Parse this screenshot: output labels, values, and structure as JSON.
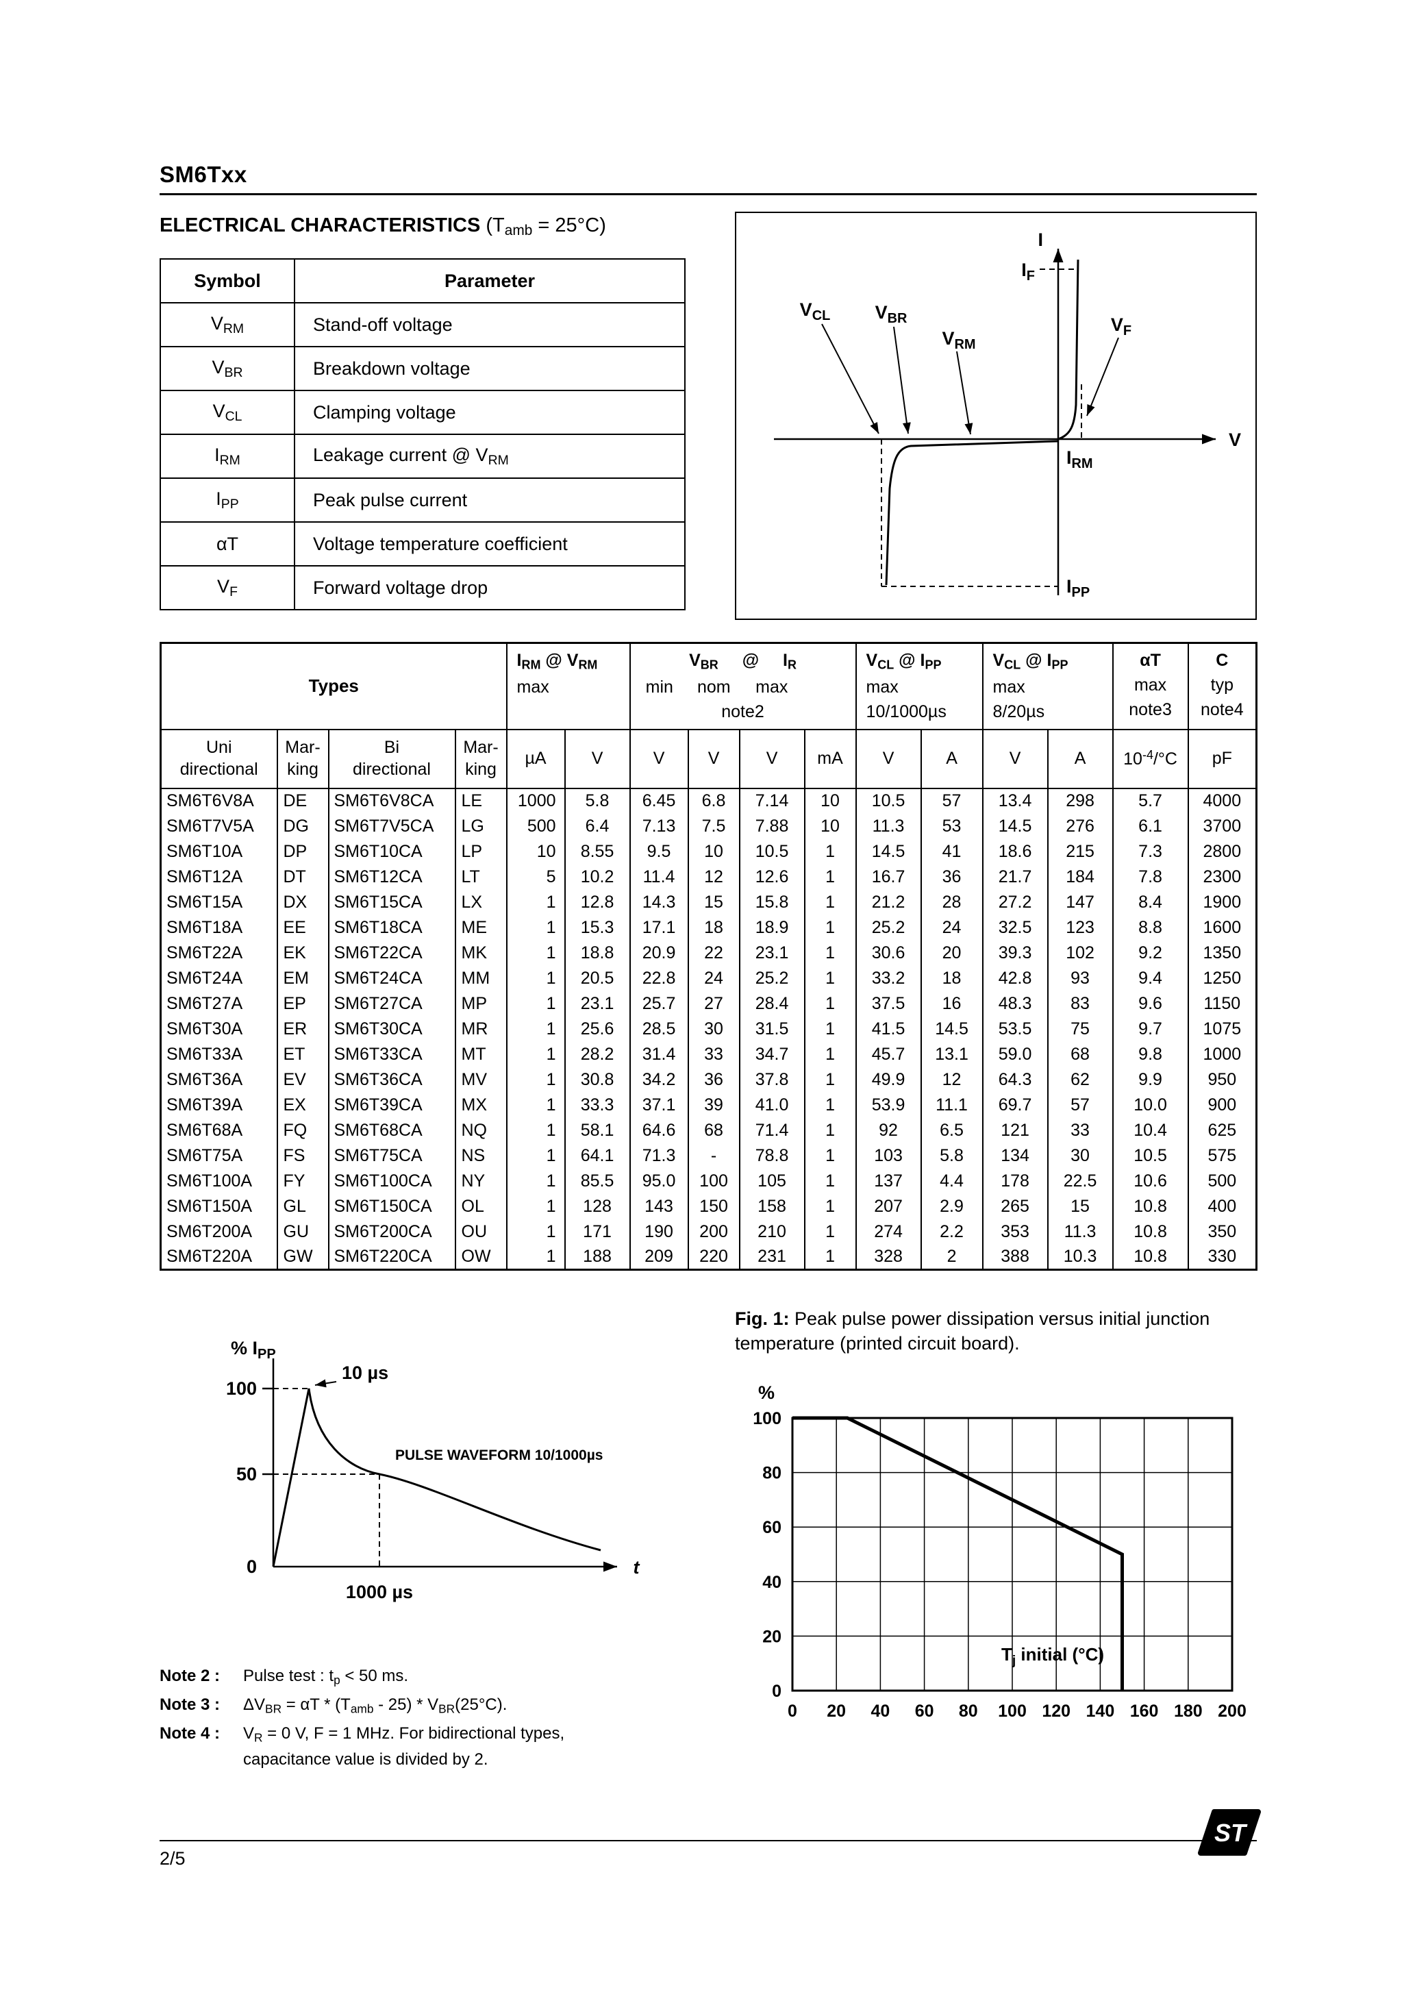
{
  "page": {
    "model": "SM6Txx",
    "section_title_main": "ELECTRICAL CHARACTERISTICS",
    "section_title_cond": " (T~amb~ = 25°C)"
  },
  "symbol_table": {
    "col1": "Symbol",
    "col2": "Parameter",
    "rows": [
      {
        "symbol": "V~RM~",
        "parameter": "Stand-off voltage"
      },
      {
        "symbol": "V~BR~",
        "parameter": "Breakdown voltage"
      },
      {
        "symbol": "V~CL~",
        "parameter": "Clamping voltage"
      },
      {
        "symbol": "I~RM~",
        "parameter": "Leakage current @ V~RM~"
      },
      {
        "symbol": "I~PP~",
        "parameter": "Peak pulse current"
      },
      {
        "symbol": "αT",
        "parameter": "Voltage temperature coefficient"
      },
      {
        "symbol": "V~F~",
        "parameter": "Forward voltage drop"
      }
    ]
  },
  "iv_diagram": {
    "i_axis": "I",
    "v_axis": "V",
    "if_label": "I~F~",
    "vcl_label": "V~CL~",
    "vbr_label": "V~BR~",
    "vrm_label": "V~RM~",
    "vf_label": "V~F~",
    "irm_label": "I~RM~",
    "ipp_label": "I~PP~"
  },
  "main_table": {
    "groups": {
      "types": "Types",
      "irm": {
        "l1": "I~RM~ @ V~RM~",
        "l2": "max",
        "l3": ""
      },
      "vbr": {
        "l1": "V~BR~ @ I~R~",
        "min": "min",
        "nom": "nom",
        "max": "max",
        "note": "note2"
      },
      "vcl10": {
        "l1": "V~CL~ @ I~PP~",
        "l2": "max",
        "l3": "10/1000µs"
      },
      "vcl8": {
        "l1": "V~CL~ @ I~PP~",
        "l2": "max",
        "l3": "8/20µs"
      },
      "alpha": {
        "l1": "αT",
        "l2": "max",
        "l3": "note3"
      },
      "cap": {
        "l1": "C",
        "l2": "typ",
        "l3": "note4"
      }
    },
    "col_headers": [
      "Uni\ndirectional",
      "Mar-\nking",
      "Bi\ndirectional",
      "Mar-\nking",
      "µA",
      "V",
      "V",
      "V",
      "V",
      "mA",
      "V",
      "A",
      "V",
      "A",
      "10^-4^/°C",
      "pF"
    ],
    "rows": [
      [
        "SM6T6V8A",
        "DE",
        "SM6T6V8CA",
        "LE",
        "1000",
        "5.8",
        "6.45",
        "6.8",
        "7.14",
        "10",
        "10.5",
        "57",
        "13.4",
        "298",
        "5.7",
        "4000"
      ],
      [
        "SM6T7V5A",
        "DG",
        "SM6T7V5CA",
        "LG",
        "500",
        "6.4",
        "7.13",
        "7.5",
        "7.88",
        "10",
        "11.3",
        "53",
        "14.5",
        "276",
        "6.1",
        "3700"
      ],
      [
        "SM6T10A",
        "DP",
        "SM6T10CA",
        "LP",
        "10",
        "8.55",
        "9.5",
        "10",
        "10.5",
        "1",
        "14.5",
        "41",
        "18.6",
        "215",
        "7.3",
        "2800"
      ],
      [
        "SM6T12A",
        "DT",
        "SM6T12CA",
        "LT",
        "5",
        "10.2",
        "11.4",
        "12",
        "12.6",
        "1",
        "16.7",
        "36",
        "21.7",
        "184",
        "7.8",
        "2300"
      ],
      [
        "SM6T15A",
        "DX",
        "SM6T15CA",
        "LX",
        "1",
        "12.8",
        "14.3",
        "15",
        "15.8",
        "1",
        "21.2",
        "28",
        "27.2",
        "147",
        "8.4",
        "1900"
      ],
      [
        "SM6T18A",
        "EE",
        "SM6T18CA",
        "ME",
        "1",
        "15.3",
        "17.1",
        "18",
        "18.9",
        "1",
        "25.2",
        "24",
        "32.5",
        "123",
        "8.8",
        "1600"
      ],
      [
        "SM6T22A",
        "EK",
        "SM6T22CA",
        "MK",
        "1",
        "18.8",
        "20.9",
        "22",
        "23.1",
        "1",
        "30.6",
        "20",
        "39.3",
        "102",
        "9.2",
        "1350"
      ],
      [
        "SM6T24A",
        "EM",
        "SM6T24CA",
        "MM",
        "1",
        "20.5",
        "22.8",
        "24",
        "25.2",
        "1",
        "33.2",
        "18",
        "42.8",
        "93",
        "9.4",
        "1250"
      ],
      [
        "SM6T27A",
        "EP",
        "SM6T27CA",
        "MP",
        "1",
        "23.1",
        "25.7",
        "27",
        "28.4",
        "1",
        "37.5",
        "16",
        "48.3",
        "83",
        "9.6",
        "1150"
      ],
      [
        "SM6T30A",
        "ER",
        "SM6T30CA",
        "MR",
        "1",
        "25.6",
        "28.5",
        "30",
        "31.5",
        "1",
        "41.5",
        "14.5",
        "53.5",
        "75",
        "9.7",
        "1075"
      ],
      [
        "SM6T33A",
        "ET",
        "SM6T33CA",
        "MT",
        "1",
        "28.2",
        "31.4",
        "33",
        "34.7",
        "1",
        "45.7",
        "13.1",
        "59.0",
        "68",
        "9.8",
        "1000"
      ],
      [
        "SM6T36A",
        "EV",
        "SM6T36CA",
        "MV",
        "1",
        "30.8",
        "34.2",
        "36",
        "37.8",
        "1",
        "49.9",
        "12",
        "64.3",
        "62",
        "9.9",
        "950"
      ],
      [
        "SM6T39A",
        "EX",
        "SM6T39CA",
        "MX",
        "1",
        "33.3",
        "37.1",
        "39",
        "41.0",
        "1",
        "53.9",
        "11.1",
        "69.7",
        "57",
        "10.0",
        "900"
      ],
      [
        "SM6T68A",
        "FQ",
        "SM6T68CA",
        "NQ",
        "1",
        "58.1",
        "64.6",
        "68",
        "71.4",
        "1",
        "92",
        "6.5",
        "121",
        "33",
        "10.4",
        "625"
      ],
      [
        "SM6T75A",
        "FS",
        "SM6T75CA",
        "NS",
        "1",
        "64.1",
        "71.3",
        "-",
        "78.8",
        "1",
        "103",
        "5.8",
        "134",
        "30",
        "10.5",
        "575"
      ],
      [
        "SM6T100A",
        "FY",
        "SM6T100CA",
        "NY",
        "1",
        "85.5",
        "95.0",
        "100",
        "105",
        "1",
        "137",
        "4.4",
        "178",
        "22.5",
        "10.6",
        "500"
      ],
      [
        "SM6T150A",
        "GL",
        "SM6T150CA",
        "OL",
        "1",
        "128",
        "143",
        "150",
        "158",
        "1",
        "207",
        "2.9",
        "265",
        "15",
        "10.8",
        "400"
      ],
      [
        "SM6T200A",
        "GU",
        "SM6T200CA",
        "OU",
        "1",
        "171",
        "190",
        "200",
        "210",
        "1",
        "274",
        "2.2",
        "353",
        "11.3",
        "10.8",
        "350"
      ],
      [
        "SM6T220A",
        "GW",
        "SM6T220CA",
        "OW",
        "1",
        "188",
        "209",
        "220",
        "231",
        "1",
        "328",
        "2",
        "388",
        "10.3",
        "10.8",
        "330"
      ]
    ]
  },
  "pulse_chart": {
    "ylabel": "% I~PP~",
    "tick_100": "100",
    "tick_50": "50",
    "tick_0": "0",
    "peak_label": "10 µs",
    "waveform_label": "PULSE WAVEFORM 10/1000µs",
    "x_1000": "1000 µs",
    "xlabel": "t"
  },
  "figure1": {
    "caption_label": "Fig. 1:",
    "caption_text": " Peak pulse power dissipation versus initial junction temperature (printed circuit board)."
  },
  "chart_data": [
    {
      "id": "pulse-waveform",
      "type": "line",
      "title": "PULSE WAVEFORM 10/1000µs",
      "xlabel": "t",
      "ylabel": "% IPP",
      "yticks": [
        0,
        50,
        100
      ],
      "x_annotations": [
        "10 µs",
        "1000 µs"
      ],
      "points": [
        [
          0,
          0
        ],
        [
          10,
          100
        ],
        [
          1000,
          50
        ]
      ],
      "description": "Exponential test pulse: rises to 100% of IPP at t = 10 µs, decays to 50% at t = 1000 µs"
    },
    {
      "id": "fig1-derating",
      "type": "line",
      "title": "Fig. 1: Peak pulse power dissipation versus initial junction temperature (printed circuit board).",
      "xlabel": "T~j~ initial (°C)",
      "ylabel": "%",
      "xlim": [
        0,
        200
      ],
      "ylim": [
        0,
        100
      ],
      "xticks": [
        0,
        20,
        40,
        60,
        80,
        100,
        120,
        140,
        160,
        180,
        200
      ],
      "yticks": [
        0,
        20,
        40,
        60,
        80,
        100
      ],
      "grid": true,
      "points": [
        [
          0,
          100
        ],
        [
          25,
          100
        ],
        [
          150,
          50
        ],
        [
          150,
          0
        ]
      ]
    }
  ],
  "notes": [
    {
      "label": "Note 2 :",
      "text": "Pulse test : t~p~ < 50 ms."
    },
    {
      "label": "Note 3 :",
      "text": "ΔV~BR~ = αT * (T~amb~ - 25) * V~BR~(25°C)."
    },
    {
      "label": "Note 4 :",
      "text": "V~R~ = 0 V,  F = 1 MHz. For bidirectional types,\ncapacitance value is divided by 2."
    }
  ],
  "footer": {
    "page_number": "2/5",
    "logo_text": "ST"
  }
}
